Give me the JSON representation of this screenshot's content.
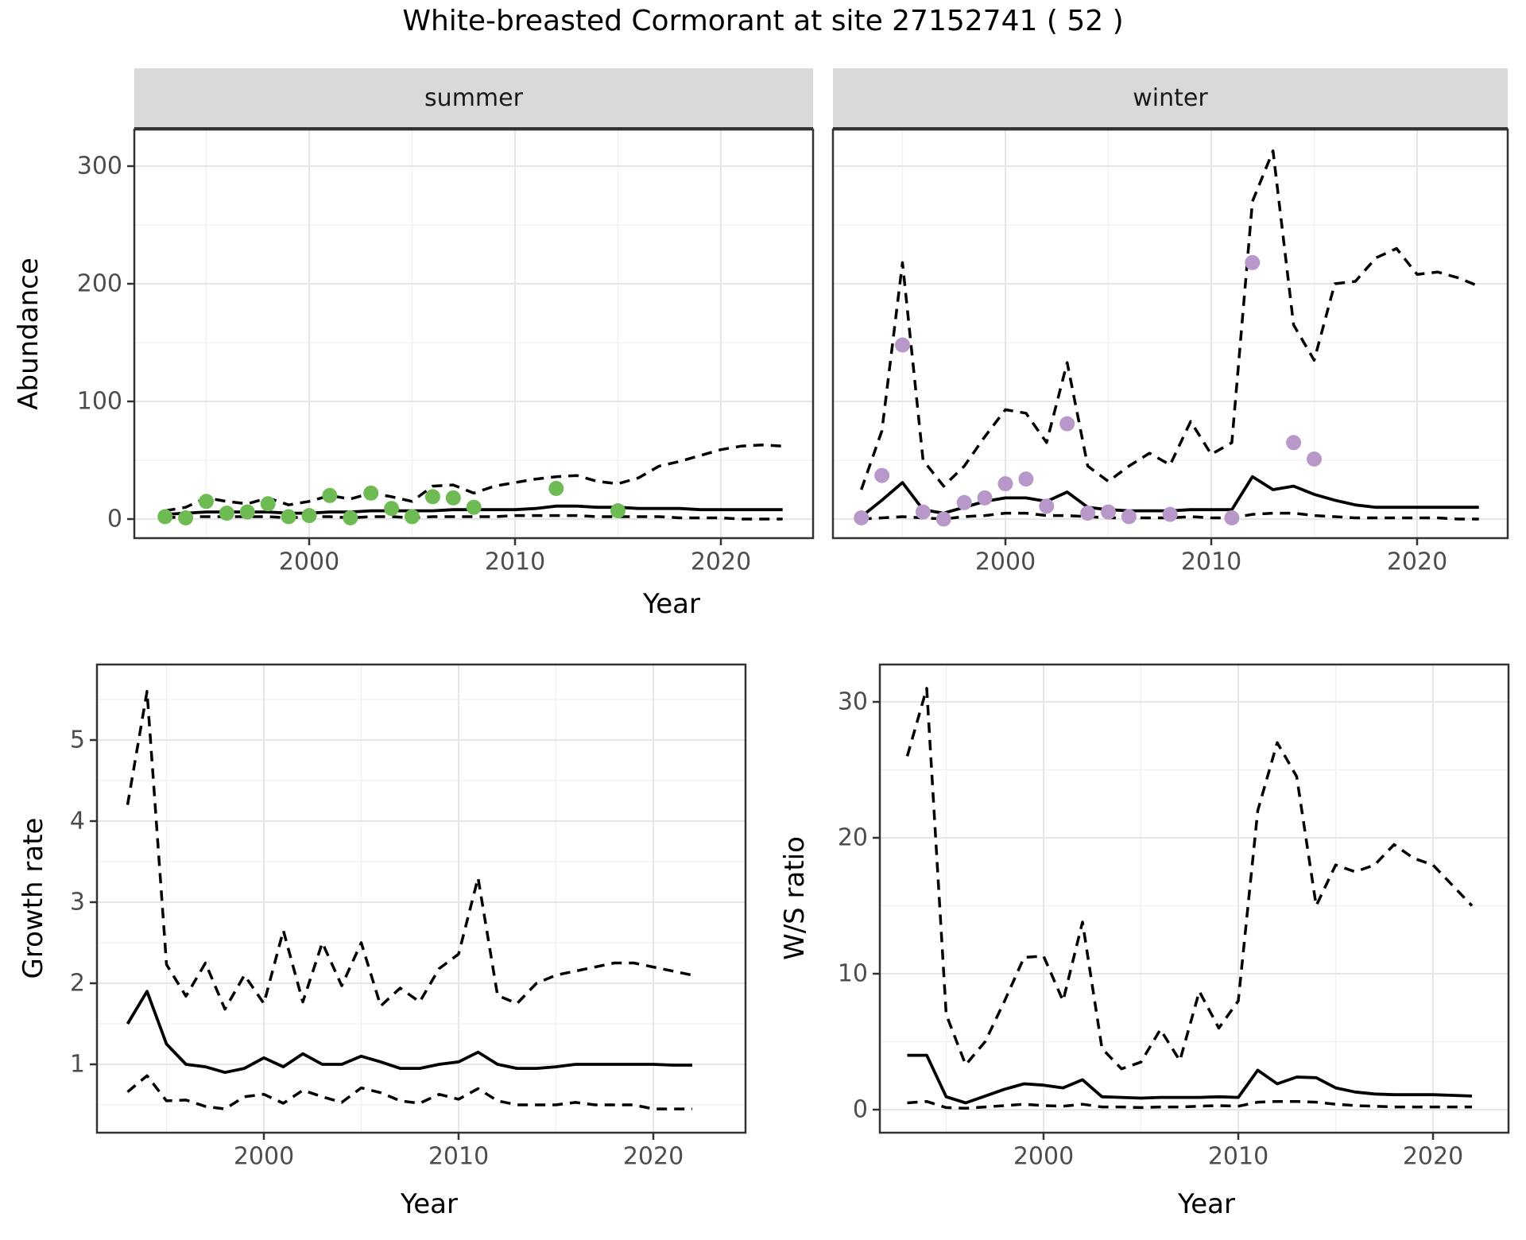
{
  "title": "White-breasted Cormorant at site 27152741 ( 52 )",
  "colors": {
    "summer_point": "#6EBB54",
    "winter_point": "#B898C8",
    "line": "#000000",
    "strip_bg": "#d9d9d9",
    "panel_border": "#333333",
    "grid_major": "#e6e6e6",
    "grid_minor": "#f0f0f0",
    "axis_text": "#4d4d4d"
  },
  "chart_data": [
    {
      "id": "abundance-summer",
      "type": "line",
      "facet": "summer",
      "x_label": "Year",
      "y_label": "Abundance",
      "x_ticks": [
        2000,
        2010,
        2020
      ],
      "x_minor_ticks": [
        1995,
        2005,
        2015
      ],
      "y_ticks": [
        0,
        100,
        200,
        300
      ],
      "y_minor_ticks": [
        50,
        150,
        250
      ],
      "x_range": [
        1991.5,
        2024.6
      ],
      "y_range": [
        -16,
        331
      ],
      "years": [
        1993,
        1994,
        1995,
        1996,
        1997,
        1998,
        1999,
        2000,
        2001,
        2002,
        2003,
        2004,
        2005,
        2006,
        2007,
        2008,
        2009,
        2010,
        2011,
        2012,
        2013,
        2014,
        2015,
        2016,
        2017,
        2018,
        2019,
        2020,
        2021,
        2022,
        2023
      ],
      "series": [
        {
          "name": "median",
          "style": "solid",
          "values": [
            4,
            5,
            6,
            6,
            6,
            6,
            5,
            5,
            6,
            6,
            7,
            7,
            7,
            7,
            8,
            8,
            8,
            8,
            9,
            11,
            11,
            10,
            10,
            9,
            9,
            9,
            8,
            8,
            8,
            8,
            8
          ]
        },
        {
          "name": "upper-ci",
          "style": "dashed",
          "values": [
            7,
            10,
            18,
            15,
            13,
            18,
            12,
            15,
            20,
            17,
            22,
            19,
            15,
            28,
            29,
            22,
            28,
            31,
            34,
            36,
            37,
            32,
            30,
            35,
            45,
            49,
            54,
            59,
            62,
            63,
            62
          ]
        },
        {
          "name": "lower-ci",
          "style": "dashed",
          "values": [
            1,
            2,
            2,
            2,
            2,
            2,
            1,
            2,
            2,
            1,
            2,
            2,
            1,
            2,
            2,
            2,
            2,
            3,
            3,
            3,
            3,
            2,
            2,
            2,
            2,
            1,
            1,
            1,
            0,
            0,
            0
          ]
        }
      ],
      "points": {
        "name": "summer-observations",
        "color": "#6EBB54",
        "data": [
          [
            1993,
            2
          ],
          [
            1994,
            1
          ],
          [
            1995,
            15
          ],
          [
            1996,
            5
          ],
          [
            1997,
            6
          ],
          [
            1998,
            13
          ],
          [
            1999,
            2
          ],
          [
            2000,
            3
          ],
          [
            2001,
            20
          ],
          [
            2002,
            1
          ],
          [
            2003,
            22
          ],
          [
            2004,
            9
          ],
          [
            2005,
            2
          ],
          [
            2006,
            19
          ],
          [
            2007,
            18
          ],
          [
            2008,
            10
          ],
          [
            2012,
            26
          ],
          [
            2015,
            7
          ]
        ]
      }
    },
    {
      "id": "abundance-winter",
      "type": "line",
      "facet": "winter",
      "x_label": "Year",
      "y_label": null,
      "x_ticks": [
        2000,
        2010,
        2020
      ],
      "x_minor_ticks": [
        1995,
        2005,
        2015
      ],
      "y_ticks": [
        0,
        100,
        200,
        300
      ],
      "y_minor_ticks": [
        50,
        150,
        250
      ],
      "x_range": [
        1991.5,
        2024.6
      ],
      "y_range": [
        -16,
        331
      ],
      "years": [
        1993,
        1994,
        1995,
        1996,
        1997,
        1998,
        1999,
        2000,
        2001,
        2002,
        2003,
        2004,
        2005,
        2006,
        2007,
        2008,
        2009,
        2010,
        2011,
        2012,
        2013,
        2014,
        2015,
        2016,
        2017,
        2018,
        2019,
        2020,
        2021,
        2022,
        2023
      ],
      "series": [
        {
          "name": "median",
          "style": "solid",
          "values": [
            2,
            16,
            31,
            8,
            5,
            10,
            15,
            18,
            18,
            15,
            23,
            10,
            8,
            7,
            7,
            7,
            8,
            8,
            8,
            36,
            25,
            28,
            21,
            16,
            12,
            10,
            10,
            10,
            10,
            10,
            10
          ]
        },
        {
          "name": "upper-ci",
          "style": "dashed",
          "values": [
            25,
            75,
            218,
            50,
            28,
            45,
            70,
            93,
            90,
            65,
            133,
            45,
            32,
            45,
            56,
            46,
            83,
            55,
            65,
            270,
            313,
            165,
            135,
            200,
            202,
            222,
            230,
            208,
            210,
            205,
            198
          ]
        },
        {
          "name": "lower-ci",
          "style": "dashed",
          "values": [
            0,
            1,
            2,
            1,
            0,
            2,
            3,
            5,
            5,
            3,
            3,
            2,
            1,
            1,
            1,
            1,
            2,
            1,
            1,
            4,
            5,
            5,
            3,
            2,
            1,
            1,
            1,
            1,
            1,
            0,
            0
          ]
        }
      ],
      "points": {
        "name": "winter-observations",
        "color": "#B898C8",
        "data": [
          [
            1993,
            1
          ],
          [
            1994,
            37
          ],
          [
            1995,
            148
          ],
          [
            1996,
            6
          ],
          [
            1997,
            0
          ],
          [
            1998,
            14
          ],
          [
            1999,
            18
          ],
          [
            2000,
            30
          ],
          [
            2001,
            34
          ],
          [
            2002,
            11
          ],
          [
            2003,
            81
          ],
          [
            2004,
            5
          ],
          [
            2005,
            6
          ],
          [
            2006,
            2
          ],
          [
            2008,
            4
          ],
          [
            2011,
            1
          ],
          [
            2012,
            218
          ],
          [
            2014,
            65
          ],
          [
            2015,
            51
          ]
        ]
      }
    },
    {
      "id": "growth-rate",
      "type": "line",
      "facet": null,
      "x_label": "Year",
      "y_label": "Growth rate",
      "x_ticks": [
        2000,
        2010,
        2020
      ],
      "x_minor_ticks": [
        1995,
        2005,
        2015
      ],
      "y_ticks": [
        1,
        2,
        3,
        4,
        5
      ],
      "y_minor_ticks": [
        0.5,
        1.5,
        2.5,
        3.5,
        4.5,
        5.5
      ],
      "x_range": [
        1991.4,
        2024.7
      ],
      "y_range": [
        0.16,
        5.93
      ],
      "years": [
        1993,
        1994,
        1995,
        1996,
        1997,
        1998,
        1999,
        2000,
        2001,
        2002,
        2003,
        2004,
        2005,
        2006,
        2007,
        2008,
        2009,
        2010,
        2011,
        2012,
        2013,
        2014,
        2015,
        2016,
        2017,
        2018,
        2019,
        2020,
        2021,
        2022
      ],
      "series": [
        {
          "name": "median",
          "style": "solid",
          "values": [
            1.5,
            1.9,
            1.25,
            1.0,
            0.97,
            0.9,
            0.95,
            1.08,
            0.97,
            1.13,
            1.0,
            1.0,
            1.1,
            1.03,
            0.95,
            0.95,
            1.0,
            1.03,
            1.15,
            1.0,
            0.95,
            0.95,
            0.97,
            1.0,
            1.0,
            1.0,
            1.0,
            1.0,
            0.99,
            0.99
          ]
        },
        {
          "name": "upper-ci",
          "style": "dashed",
          "values": [
            4.2,
            5.6,
            2.23,
            1.84,
            2.25,
            1.68,
            2.1,
            1.75,
            2.65,
            1.77,
            2.5,
            1.97,
            2.5,
            1.72,
            1.94,
            1.77,
            2.18,
            2.36,
            3.3,
            1.85,
            1.75,
            2.0,
            2.1,
            2.15,
            2.2,
            2.25,
            2.25,
            2.2,
            2.15,
            2.1
          ]
        },
        {
          "name": "lower-ci",
          "style": "dashed",
          "values": [
            0.66,
            0.86,
            0.55,
            0.56,
            0.48,
            0.45,
            0.6,
            0.63,
            0.52,
            0.68,
            0.6,
            0.53,
            0.71,
            0.65,
            0.55,
            0.52,
            0.63,
            0.57,
            0.7,
            0.55,
            0.5,
            0.5,
            0.5,
            0.53,
            0.5,
            0.5,
            0.5,
            0.45,
            0.45,
            0.45
          ]
        }
      ],
      "points": null
    },
    {
      "id": "ws-ratio",
      "type": "line",
      "facet": null,
      "x_label": "Year",
      "y_label": "W/S ratio",
      "x_ticks": [
        2000,
        2010,
        2020
      ],
      "x_minor_ticks": [
        1995,
        2005,
        2015
      ],
      "y_ticks": [
        0,
        10,
        20,
        30
      ],
      "y_minor_ticks": [
        5,
        15,
        25
      ],
      "x_range": [
        1991.6,
        2023.9
      ],
      "y_range": [
        -1.7,
        32.7
      ],
      "years": [
        1993,
        1994,
        1995,
        1996,
        1997,
        1998,
        1999,
        2000,
        2001,
        2002,
        2003,
        2004,
        2005,
        2006,
        2007,
        2008,
        2009,
        2010,
        2011,
        2012,
        2013,
        2014,
        2015,
        2016,
        2017,
        2018,
        2019,
        2020,
        2021,
        2022
      ],
      "series": [
        {
          "name": "median",
          "style": "solid",
          "values": [
            4.0,
            4.0,
            0.95,
            0.5,
            1.0,
            1.5,
            1.9,
            1.8,
            1.6,
            2.2,
            0.95,
            0.9,
            0.85,
            0.9,
            0.9,
            0.9,
            0.95,
            0.9,
            2.9,
            1.9,
            2.4,
            2.35,
            1.6,
            1.3,
            1.15,
            1.1,
            1.1,
            1.1,
            1.05,
            1.0
          ]
        },
        {
          "name": "upper-ci",
          "style": "dashed",
          "values": [
            26,
            31,
            7,
            3.3,
            5,
            8,
            11.2,
            11.3,
            8,
            13.8,
            4.5,
            3,
            3.5,
            5.9,
            3.6,
            8.7,
            6,
            8,
            22,
            27,
            24.5,
            15,
            18,
            17.5,
            18,
            19.5,
            18.5,
            18,
            16.5,
            15
          ]
        },
        {
          "name": "lower-ci",
          "style": "dashed",
          "values": [
            0.5,
            0.6,
            0.15,
            0.1,
            0.2,
            0.3,
            0.4,
            0.3,
            0.25,
            0.4,
            0.2,
            0.2,
            0.15,
            0.2,
            0.2,
            0.25,
            0.3,
            0.25,
            0.55,
            0.6,
            0.6,
            0.55,
            0.4,
            0.3,
            0.25,
            0.2,
            0.2,
            0.2,
            0.2,
            0.2
          ]
        }
      ],
      "points": null
    }
  ]
}
